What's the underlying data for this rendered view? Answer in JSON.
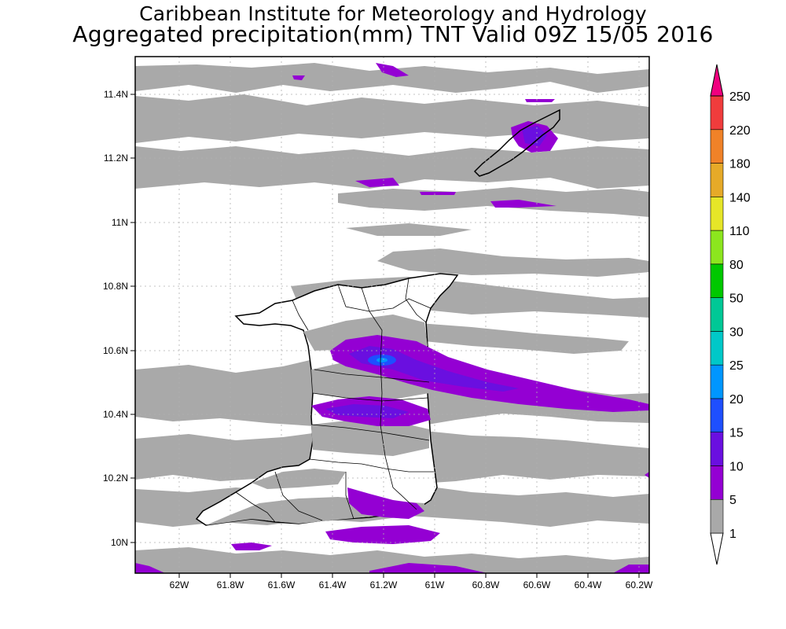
{
  "title": {
    "line1": "Caribbean Institute for Meteorology and Hydrology",
    "line2": "Aggregated precipitation(mm) TNT Valid 09Z 15/05 2016"
  },
  "axes": {
    "lon_ticks": [
      "62W",
      "61.8W",
      "61.6W",
      "61.4W",
      "61.2W",
      "61W",
      "60.8W",
      "60.6W",
      "60.4W",
      "60.2W"
    ],
    "lat_ticks": [
      "11.4N",
      "11.2N",
      "11N",
      "10.8N",
      "10.6N",
      "10.4N",
      "10.2N",
      "10N"
    ]
  },
  "colorbar": {
    "levels": [
      1,
      5,
      10,
      15,
      20,
      25,
      30,
      50,
      80,
      110,
      140,
      180,
      220,
      250
    ],
    "colors": [
      "#a9a9a9",
      "#9400d3",
      "#6a0fe0",
      "#1e4fff",
      "#0096ff",
      "#00c8c8",
      "#00c896",
      "#00c800",
      "#8ce61e",
      "#e6e628",
      "#e6aa28",
      "#f08228",
      "#f03c3c",
      "#f0007f"
    ]
  },
  "chart_data": {
    "type": "heatmap",
    "variable": "Aggregated precipitation (mm)",
    "region": "TNT",
    "valid": "09Z 15/05 2016",
    "lon_range": [
      "62.1W",
      "60.2W"
    ],
    "lat_range": [
      "9.9N",
      "11.5N"
    ],
    "contour_levels_mm": [
      1,
      5,
      10,
      15,
      20,
      25,
      30,
      50,
      80,
      110,
      140,
      180,
      220,
      250
    ],
    "max_shown_mm": "15-20 near 61.2W 10.55N"
  }
}
